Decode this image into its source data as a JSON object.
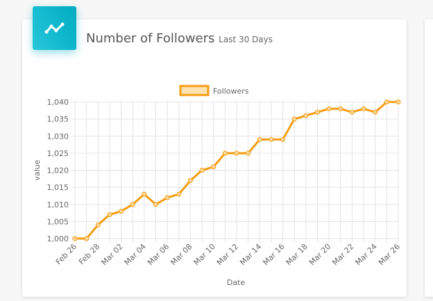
{
  "header": {
    "title": "Number of Followers",
    "subtitle": "Last 30 Days"
  },
  "chart_data": {
    "type": "line",
    "legend_position": "top",
    "grid": true,
    "x_label": "Date",
    "y_label": "value",
    "categories": [
      "Feb 26",
      null,
      "Feb 28",
      null,
      "Mar 02",
      null,
      "Mar 04",
      null,
      "Mar 06",
      null,
      "Mar 08",
      null,
      "Mar 10",
      null,
      "Mar 12",
      null,
      "Mar 14",
      null,
      "Mar 16",
      null,
      "Mar 18",
      null,
      "Mar 20",
      null,
      "Mar 22",
      null,
      "Mar 24",
      null,
      "Mar 26"
    ],
    "series": [
      {
        "name": "Followers",
        "color": "#f39c12",
        "values": [
          1000,
          1000,
          1004,
          1007,
          1008,
          1010,
          1013,
          1010,
          1012,
          1013,
          1017,
          1020,
          1021,
          1025,
          1025,
          1025,
          1029,
          1029,
          1029,
          1035,
          1036,
          1037,
          1038,
          1038,
          1037,
          1038,
          1037,
          1040,
          1040
        ]
      }
    ],
    "ylim": [
      1000,
      1040
    ],
    "yticks": [
      {
        "value": 1000,
        "label": "1,000"
      },
      {
        "value": 1005,
        "label": "1,005"
      },
      {
        "value": 1010,
        "label": "1,010"
      },
      {
        "value": 1015,
        "label": "1,015"
      },
      {
        "value": 1020,
        "label": "1,020"
      },
      {
        "value": 1025,
        "label": "1,025"
      },
      {
        "value": 1030,
        "label": "1,030"
      },
      {
        "value": 1035,
        "label": "1,035"
      },
      {
        "value": 1040,
        "label": "1,040"
      }
    ]
  }
}
